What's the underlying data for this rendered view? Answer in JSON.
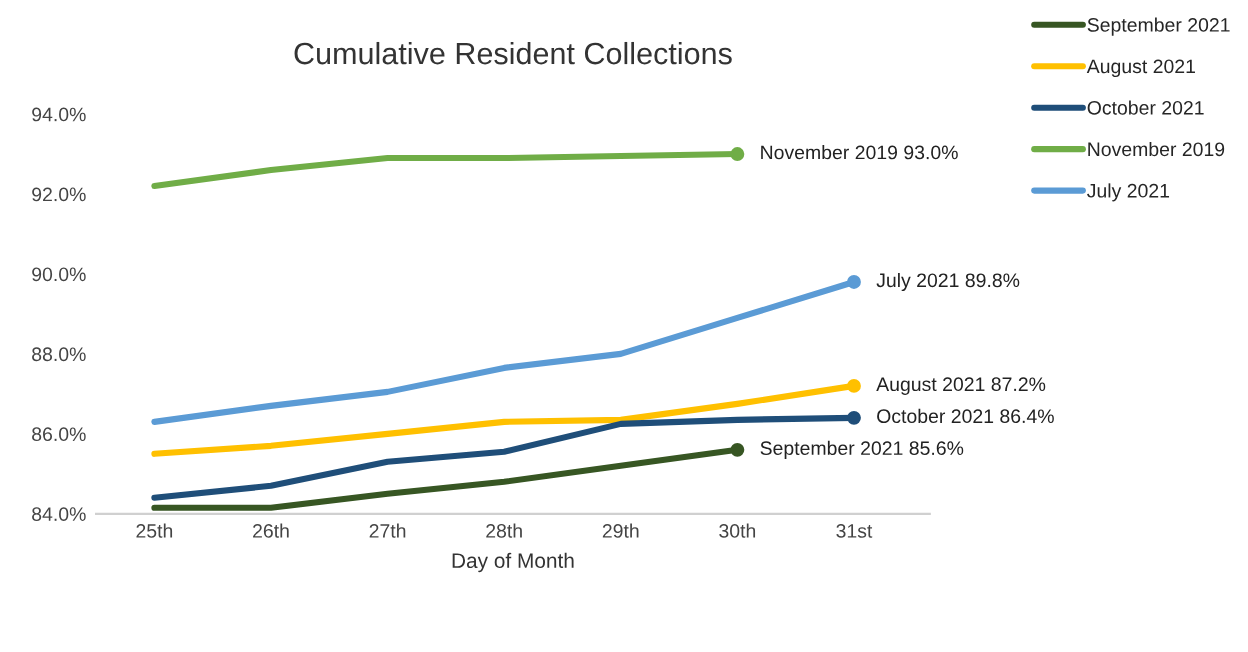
{
  "chart_data": {
    "type": "line",
    "title": "Cumulative Resident Collections",
    "xlabel": "Day of Month",
    "categories": [
      "25th",
      "26th",
      "27th",
      "28th",
      "29th",
      "30th",
      "31st"
    ],
    "series": [
      {
        "name": "September 2021",
        "color": "#375623",
        "values": [
          84.15,
          84.15,
          84.5,
          84.8,
          85.2,
          85.6,
          null
        ],
        "value_labels": [
          null,
          null,
          null,
          null,
          null,
          "September 2021 85.6%",
          null
        ]
      },
      {
        "name": "August 2021",
        "color": "#ffc000",
        "values": [
          85.5,
          85.7,
          86.0,
          86.3,
          86.35,
          86.75,
          87.2
        ],
        "value_labels": [
          null,
          null,
          null,
          null,
          null,
          null,
          "August 2021 87.2%"
        ]
      },
      {
        "name": "October 2021",
        "color": "#1f4e79",
        "values": [
          84.4,
          84.7,
          85.3,
          85.55,
          86.25,
          86.35,
          86.4
        ],
        "value_labels": [
          null,
          null,
          null,
          null,
          null,
          null,
          "October 2021 86.4%"
        ]
      },
      {
        "name": "November 2019",
        "color": "#70ad47",
        "values": [
          92.2,
          92.6,
          92.9,
          92.9,
          92.95,
          93.0,
          null
        ],
        "value_labels": [
          null,
          null,
          null,
          null,
          null,
          "November 2019 93.0%",
          null
        ]
      },
      {
        "name": "July 2021",
        "color": "#5b9bd5",
        "values": [
          86.3,
          86.7,
          87.05,
          87.65,
          88.0,
          88.9,
          89.8
        ],
        "value_labels": [
          null,
          null,
          null,
          null,
          null,
          null,
          "July 2021 89.8%"
        ]
      }
    ],
    "ylim": [
      84,
      94
    ],
    "yticks": [
      {
        "value": 84,
        "label": "84.0%"
      },
      {
        "value": 86,
        "label": "86.0%"
      },
      {
        "value": 88,
        "label": "88.0%"
      },
      {
        "value": 90,
        "label": "90.0%"
      },
      {
        "value": 92,
        "label": "92.0%"
      },
      {
        "value": 94,
        "label": "94.0%"
      }
    ],
    "grid": false,
    "legend": "top right",
    "marker": "none",
    "line_style": "solid"
  }
}
